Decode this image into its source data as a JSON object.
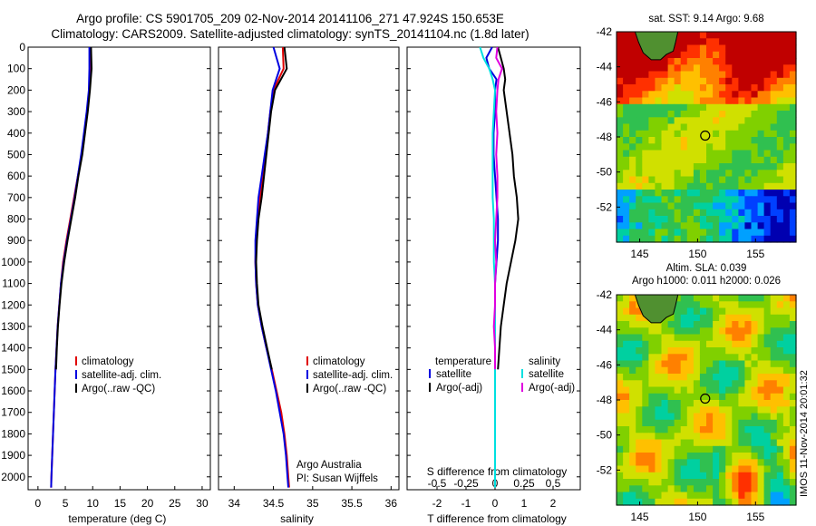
{
  "title": {
    "line1": "Argo profile: CS 5901705_209 02-Nov-2014 20141106_271 47.924S 150.653E",
    "line2": "Climatology: CARS2009. Satellite-adjusted climatology: synTS_20141104.nc (1.8d later)"
  },
  "maps": {
    "sst_title": "sat. SST: 9.14 Argo: 9.68",
    "sla_title1": "Altim. SLA: 0.039",
    "sla_title2": "Argo h1000: 0.011 h2000: 0.026",
    "side_stamp": "IMOS 11-Nov-2014 20:01:32"
  },
  "colors": {
    "climatology": "#e00000",
    "satellite": "#0000e0",
    "argo": "#000000",
    "satellite_salinity": "#00e0e0",
    "argo_salinity": "#e000e0"
  },
  "chart_data": [
    {
      "type": "line",
      "xlabel": "temperature (deg C)",
      "ylabel": "",
      "xlim": [
        -1.8,
        31.5
      ],
      "ylim": [
        2060,
        0
      ],
      "xticks": [
        0,
        5,
        10,
        15,
        20,
        25,
        30
      ],
      "yticks": [
        0,
        100,
        200,
        300,
        400,
        500,
        600,
        700,
        800,
        900,
        1000,
        1100,
        1200,
        1300,
        1400,
        1500,
        1600,
        1700,
        1800,
        1900,
        2000
      ],
      "legend": [
        "climatology",
        "satellite-adj. clim.",
        "Argo(..raw -QC)"
      ],
      "series": [
        {
          "name": "climatology",
          "color": "#e00000",
          "depth": [
            0,
            100,
            200,
            300,
            400,
            500,
            600,
            700,
            800,
            900,
            1000,
            1100,
            1200,
            1300,
            1400,
            1500,
            1600,
            1700,
            1800,
            1900,
            2000,
            2050
          ],
          "values": [
            9.6,
            9.5,
            9.4,
            9.0,
            8.5,
            8.0,
            7.3,
            6.6,
            5.9,
            5.2,
            4.6,
            4.2,
            3.9,
            3.6,
            3.4,
            3.2,
            3.05,
            2.9,
            2.75,
            2.6,
            2.45,
            2.4
          ]
        },
        {
          "name": "satellite-adj. clim.",
          "color": "#0000e0",
          "depth": [
            0,
            100,
            200,
            300,
            400,
            500,
            600,
            700,
            800,
            900,
            1000,
            1100,
            1200,
            1300,
            1400,
            1500,
            1600,
            1700,
            1800,
            1900,
            2000,
            2050
          ],
          "values": [
            9.4,
            9.4,
            9.3,
            8.9,
            8.4,
            7.9,
            7.3,
            6.7,
            6.0,
            5.3,
            4.7,
            4.2,
            3.9,
            3.6,
            3.4,
            3.2,
            3.05,
            2.9,
            2.75,
            2.6,
            2.45,
            2.4
          ]
        },
        {
          "name": "Argo(..raw -QC)",
          "color": "#000000",
          "depth": [
            0,
            100,
            200,
            300,
            400,
            500,
            600,
            700,
            800,
            900,
            1000,
            1100,
            1200,
            1300,
            1400,
            1500
          ],
          "values": [
            9.7,
            9.8,
            9.5,
            9.1,
            8.6,
            8.1,
            7.4,
            6.8,
            6.1,
            5.4,
            4.8,
            4.3,
            3.95,
            3.65,
            3.45,
            3.3
          ]
        }
      ]
    },
    {
      "type": "line",
      "xlabel": "salinity",
      "ylabel": "",
      "xlim": [
        33.8,
        36.1
      ],
      "ylim": [
        2060,
        0
      ],
      "xticks": [
        34,
        34.5,
        35,
        35.5,
        36
      ],
      "legend": [
        "climatology",
        "satellite-adj. clim.",
        "Argo(..raw -QC)"
      ],
      "annotations": [
        "Argo Australia",
        "PI: Susan Wijffels"
      ],
      "series": [
        {
          "name": "climatology",
          "color": "#e00000",
          "depth": [
            0,
            100,
            200,
            300,
            400,
            500,
            600,
            700,
            800,
            900,
            1000,
            1100,
            1200,
            1300,
            1400,
            1500,
            1600,
            1700,
            1800,
            1900,
            2000,
            2050
          ],
          "values": [
            34.62,
            34.63,
            34.5,
            34.46,
            34.43,
            34.4,
            34.37,
            34.33,
            34.3,
            34.28,
            34.27,
            34.28,
            34.3,
            34.35,
            34.41,
            34.48,
            34.54,
            34.6,
            34.64,
            34.67,
            34.69,
            34.7
          ]
        },
        {
          "name": "satellite-adj. clim.",
          "color": "#0000e0",
          "depth": [
            0,
            100,
            200,
            300,
            400,
            500,
            600,
            700,
            800,
            900,
            1000,
            1100,
            1200,
            1300,
            1400,
            1500,
            1600,
            1700,
            1800,
            1900,
            2000,
            2050
          ],
          "values": [
            34.5,
            34.58,
            34.49,
            34.46,
            34.43,
            34.39,
            34.35,
            34.31,
            34.29,
            34.27,
            34.27,
            34.28,
            34.3,
            34.35,
            34.41,
            34.47,
            34.53,
            34.58,
            34.63,
            34.66,
            34.68,
            34.69
          ]
        },
        {
          "name": "Argo(..raw -QC)",
          "color": "#000000",
          "depth": [
            0,
            100,
            200,
            300,
            400,
            500,
            600,
            700,
            800,
            900,
            1000,
            1100,
            1200,
            1300,
            1400,
            1500
          ],
          "values": [
            34.64,
            34.67,
            34.52,
            34.47,
            34.44,
            34.41,
            34.38,
            34.35,
            34.31,
            34.29,
            34.28,
            34.29,
            34.31,
            34.36,
            34.42,
            34.48
          ]
        }
      ]
    },
    {
      "type": "line",
      "xlabel": "T difference from climatology",
      "xlabel2": "S difference from climatology",
      "ylim": [
        2060,
        0
      ],
      "xticks": [
        -2,
        -1,
        0,
        1,
        2
      ],
      "xticks2": [
        -0.5,
        -0.25,
        0,
        0.25,
        0.5
      ],
      "legend_headers": [
        "temperature",
        "salinity"
      ],
      "legend": [
        "satellite",
        "Argo(-adj)",
        "satellite",
        "Argo(-adj)"
      ],
      "series": [
        {
          "name": "satellite",
          "quantity": "temperature",
          "color": "#0000e0",
          "depth": [
            0,
            50,
            100,
            150,
            200,
            300,
            400,
            500,
            600,
            700,
            800,
            900,
            1000,
            1100,
            1200,
            1300,
            1400,
            1500
          ],
          "values": [
            -0.1,
            -0.3,
            -0.2,
            0.05,
            0.0,
            0.0,
            -0.05,
            -0.05,
            0.0,
            0.05,
            0.1,
            0.1,
            0.05,
            0.0,
            0.0,
            0.0,
            0.0,
            0.0
          ]
        },
        {
          "name": "Argo(-adj)",
          "quantity": "temperature",
          "color": "#000000",
          "depth": [
            0,
            50,
            100,
            150,
            200,
            300,
            400,
            500,
            600,
            700,
            800,
            900,
            1000,
            1100,
            1200,
            1300,
            1400,
            1500
          ],
          "values": [
            0.1,
            0.2,
            0.3,
            0.35,
            0.3,
            0.4,
            0.5,
            0.6,
            0.65,
            0.75,
            0.8,
            0.7,
            0.55,
            0.4,
            0.3,
            0.2,
            0.15,
            0.1
          ]
        },
        {
          "name": "satellite",
          "quantity": "salinity",
          "color": "#00e0e0",
          "depth": [
            0,
            50,
            100,
            150,
            200,
            300,
            400,
            500,
            600,
            700,
            800,
            900,
            1000,
            1100,
            1200,
            1300,
            1400,
            1500,
            1600,
            1700,
            1800,
            1900,
            2000,
            2050
          ],
          "values": [
            -0.13,
            -0.1,
            -0.05,
            -0.02,
            0.0,
            -0.01,
            -0.02,
            -0.02,
            -0.02,
            -0.02,
            -0.01,
            -0.01,
            -0.01,
            0.0,
            0.0,
            0.0,
            0.0,
            0.0,
            0.0,
            0.0,
            0.0,
            0.0,
            0.0,
            0.0
          ]
        },
        {
          "name": "Argo(-adj)",
          "quantity": "salinity",
          "color": "#e000e0",
          "depth": [
            0,
            50,
            100,
            150,
            200,
            300,
            400,
            500,
            600,
            700,
            800,
            900,
            1000,
            1100,
            1200,
            1300,
            1400,
            1500
          ],
          "values": [
            0.02,
            0.01,
            0.06,
            0.03,
            0.02,
            0.01,
            0.02,
            0.01,
            0.02,
            0.02,
            0.01,
            0.0,
            0.01,
            0.0,
            0.0,
            -0.01,
            0.0,
            0.0
          ]
        }
      ]
    },
    {
      "type": "heatmap",
      "title": "sat. SST: 9.14 Argo: 9.68",
      "xlim": [
        143,
        158.5
      ],
      "ylim": [
        -54,
        -42
      ],
      "xticks": [
        145,
        150,
        155
      ],
      "yticks": [
        -42,
        -44,
        -46,
        -48,
        -50,
        -52
      ],
      "marker": {
        "lon": 150.653,
        "lat": -47.924
      }
    },
    {
      "type": "heatmap",
      "title": "Altim. SLA: 0.039",
      "subtitle": "Argo h1000: 0.011 h2000: 0.026",
      "xlim": [
        143,
        158.5
      ],
      "ylim": [
        -54,
        -42
      ],
      "xticks": [
        145,
        150,
        155
      ],
      "yticks": [
        -42,
        -44,
        -46,
        -48,
        -50,
        -52
      ],
      "marker": {
        "lon": 150.653,
        "lat": -47.924
      }
    }
  ]
}
